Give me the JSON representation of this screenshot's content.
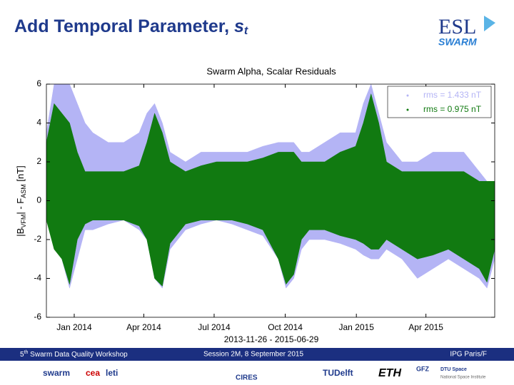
{
  "header": {
    "title": [
      "Add Temporal Parameter, ",
      "s",
      "t"
    ],
    "logo": [
      "ESL",
      "SWARM"
    ]
  },
  "chart_data": {
    "type": "band",
    "title": "Swarm Alpha, Scalar Residuals",
    "ylabel": [
      "|B",
      "VFM",
      "| - F",
      "ASM",
      " [nT]"
    ],
    "xlabel": "2013-11-26 - 2015-06-29",
    "xlim": [
      0,
      580
    ],
    "ylim": [
      -6,
      6
    ],
    "xticks": [
      {
        "value": 36,
        "label": "Jan 2014"
      },
      {
        "value": 126,
        "label": "Apr 2014"
      },
      {
        "value": 217,
        "label": "Jul 2014"
      },
      {
        "value": 309,
        "label": "Oct 2014"
      },
      {
        "value": 401,
        "label": "Jan 2015"
      },
      {
        "value": 491,
        "label": "Apr 2015"
      }
    ],
    "yticks": [
      -6,
      -4,
      -2,
      0,
      2,
      4,
      6
    ],
    "legend": "upper right",
    "x": [
      0,
      10,
      20,
      30,
      40,
      50,
      60,
      80,
      100,
      120,
      130,
      140,
      150,
      160,
      180,
      200,
      220,
      240,
      260,
      280,
      300,
      310,
      320,
      330,
      340,
      360,
      380,
      400,
      410,
      420,
      430,
      440,
      460,
      480,
      500,
      520,
      540,
      560,
      570,
      580
    ],
    "series": [
      {
        "name": "rms = 1.433 nT",
        "color": "#b4b4f5",
        "high": [
          3.5,
          6,
          6,
          6,
          5,
          4,
          3.5,
          3,
          3,
          3.5,
          4.5,
          5,
          4,
          2.5,
          2,
          2.5,
          2.5,
          2.5,
          2.5,
          2.8,
          3,
          3,
          3,
          2.5,
          2.5,
          3,
          3.5,
          3.5,
          5,
          6,
          4.5,
          3,
          2,
          2,
          2.5,
          2.5,
          2.5,
          1.5,
          1,
          1
        ],
        "low": [
          -1,
          -2,
          -3,
          -4.5,
          -3,
          -1.5,
          -1.5,
          -1.2,
          -1,
          -1.5,
          -2,
          -4,
          -4.5,
          -2.5,
          -1.5,
          -1.2,
          -1,
          -1.2,
          -1.5,
          -1.8,
          -3,
          -4.5,
          -4,
          -2.5,
          -2,
          -2,
          -2.2,
          -2.5,
          -2.8,
          -3,
          -3,
          -2.5,
          -3,
          -4,
          -3.5,
          -3,
          -3.5,
          -4,
          -4.5,
          -3
        ]
      },
      {
        "name": "rms = 0.975 nT",
        "color": "#117a11",
        "high": [
          3,
          5,
          4.5,
          4,
          2.5,
          1.5,
          1.5,
          1.5,
          1.5,
          1.8,
          3,
          4.5,
          3.5,
          2,
          1.5,
          1.8,
          2,
          2,
          2,
          2.2,
          2.5,
          2.5,
          2.5,
          2,
          2,
          2,
          2.5,
          2.8,
          4,
          5.5,
          4,
          2,
          1.5,
          1.5,
          1.5,
          1.5,
          1.5,
          1,
          1,
          1
        ],
        "low": [
          -1,
          -2.5,
          -3,
          -4.3,
          -2,
          -1.2,
          -1,
          -1,
          -1,
          -1.3,
          -2,
          -4,
          -4.4,
          -2.2,
          -1.2,
          -1,
          -1,
          -1,
          -1.2,
          -1.5,
          -3,
          -4.3,
          -3.8,
          -2,
          -1.5,
          -1.5,
          -1.8,
          -2,
          -2.2,
          -2.5,
          -2.5,
          -2,
          -2.5,
          -3,
          -2.8,
          -2.5,
          -3,
          -3.5,
          -4.2,
          -2.5
        ]
      }
    ]
  },
  "footer": {
    "left": [
      "5",
      "th",
      " Swarm Data Quality Workshop"
    ],
    "center": "Session 2M, 8 September 2015",
    "right": "IPG Paris/F"
  },
  "partners": [
    "swarm",
    "cea",
    "leti",
    "CIRES",
    "TUDelft",
    "ETH",
    "GFZ",
    "DTU Space",
    "National Space Institute"
  ]
}
